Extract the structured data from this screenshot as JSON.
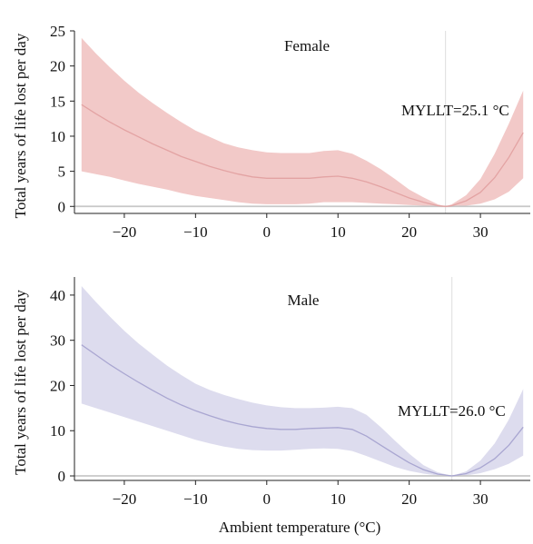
{
  "figure": {
    "xlabel": "Ambient temperature (°C)"
  },
  "chart_data": [
    {
      "type": "line",
      "title": "Female",
      "ylabel": "Total years of life lost per day",
      "xlim": [
        -27,
        37
      ],
      "ylim": [
        -1,
        25
      ],
      "xticks": [
        -20,
        -10,
        0,
        10,
        20,
        30
      ],
      "xtick_labels": [
        "−20",
        "−10",
        "0",
        "10",
        "20",
        "30"
      ],
      "yticks": [
        0,
        5,
        10,
        15,
        20,
        25
      ],
      "ytick_labels": [
        "0",
        "5",
        "10",
        "15",
        "20",
        "25"
      ],
      "annotation": "MYLLT=25.1 °C",
      "threshold_x": 25.1,
      "baseline_y": 0,
      "color": "#e3a3a3",
      "band_color": "#f2c9c8",
      "series": [
        {
          "x": [
            -26,
            -24,
            -22,
            -20,
            -18,
            -16,
            -14,
            -12,
            -10,
            -8,
            -6,
            -4,
            -2,
            0,
            2,
            4,
            6,
            8,
            10,
            12,
            14,
            16,
            18,
            20,
            22,
            24,
            25.1,
            26,
            28,
            30,
            32,
            34,
            36
          ],
          "y": [
            14.5,
            13.2,
            12.0,
            10.9,
            9.9,
            8.9,
            8.0,
            7.1,
            6.4,
            5.7,
            5.1,
            4.6,
            4.2,
            4.0,
            4.0,
            4.0,
            4.0,
            4.2,
            4.3,
            4.0,
            3.5,
            2.8,
            2.0,
            1.2,
            0.6,
            0.1,
            0.0,
            0.1,
            0.8,
            2.0,
            4.1,
            7.0,
            10.5
          ],
          "lower": [
            5.0,
            4.6,
            4.2,
            3.7,
            3.2,
            2.8,
            2.4,
            1.9,
            1.5,
            1.2,
            0.9,
            0.6,
            0.4,
            0.3,
            0.3,
            0.3,
            0.4,
            0.6,
            0.6,
            0.6,
            0.5,
            0.4,
            0.3,
            0.2,
            0.1,
            0.0,
            0.0,
            0.0,
            0.1,
            0.4,
            1.0,
            2.1,
            4.0
          ],
          "upper": [
            24.0,
            21.8,
            19.8,
            17.9,
            16.2,
            14.7,
            13.3,
            12.0,
            10.8,
            9.9,
            9.0,
            8.4,
            8.0,
            7.7,
            7.6,
            7.6,
            7.6,
            7.9,
            8.0,
            7.5,
            6.5,
            5.3,
            3.9,
            2.4,
            1.3,
            0.3,
            0.0,
            0.3,
            1.6,
            3.9,
            7.5,
            11.8,
            16.5
          ]
        }
      ]
    },
    {
      "type": "line",
      "title": "Male",
      "ylabel": "Total years of life lost per day",
      "xlim": [
        -27,
        37
      ],
      "ylim": [
        -1,
        44
      ],
      "xticks": [
        -20,
        -10,
        0,
        10,
        20,
        30
      ],
      "xtick_labels": [
        "−20",
        "−10",
        "0",
        "10",
        "20",
        "30"
      ],
      "yticks": [
        0,
        10,
        20,
        30,
        40
      ],
      "ytick_labels": [
        "0",
        "10",
        "20",
        "30",
        "40"
      ],
      "annotation": "MYLLT=26.0 °C",
      "threshold_x": 26.0,
      "baseline_y": 0,
      "color": "#a9a6d1",
      "band_color": "#dddcee",
      "series": [
        {
          "x": [
            -26,
            -24,
            -22,
            -20,
            -18,
            -16,
            -14,
            -12,
            -10,
            -8,
            -6,
            -4,
            -2,
            0,
            2,
            4,
            6,
            8,
            10,
            12,
            14,
            16,
            18,
            20,
            22,
            24,
            26,
            28,
            30,
            32,
            34,
            36
          ],
          "y": [
            29.0,
            26.8,
            24.6,
            22.6,
            20.7,
            18.9,
            17.2,
            15.7,
            14.4,
            13.3,
            12.3,
            11.5,
            10.9,
            10.5,
            10.3,
            10.3,
            10.5,
            10.6,
            10.7,
            10.3,
            8.8,
            6.8,
            4.8,
            2.9,
            1.4,
            0.4,
            0.0,
            0.5,
            1.8,
            3.8,
            6.8,
            10.8
          ],
          "lower": [
            16.0,
            15.0,
            14.0,
            13.0,
            12.0,
            11.0,
            10.0,
            9.0,
            8.0,
            7.2,
            6.5,
            6.0,
            5.7,
            5.6,
            5.6,
            5.8,
            6.0,
            6.1,
            6.0,
            5.5,
            4.4,
            3.2,
            2.0,
            1.1,
            0.5,
            0.1,
            0.0,
            0.1,
            0.6,
            1.5,
            2.7,
            4.5
          ],
          "upper": [
            42.0,
            38.5,
            35.2,
            32.1,
            29.3,
            26.8,
            24.4,
            22.3,
            20.4,
            19.0,
            17.9,
            17.0,
            16.2,
            15.6,
            15.2,
            15.0,
            15.0,
            15.1,
            15.3,
            15.0,
            13.5,
            10.8,
            7.8,
            4.9,
            2.4,
            0.8,
            0.0,
            1.0,
            3.4,
            7.2,
            12.5,
            19.2
          ]
        }
      ]
    }
  ]
}
